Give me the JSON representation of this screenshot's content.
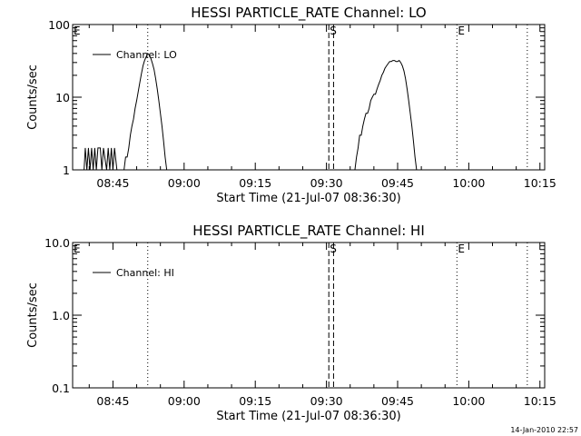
{
  "chart_data": [
    {
      "type": "line",
      "title": "HESSI PARTICLE_RATE Channel: LO",
      "xlabel": "Start Time (21-Jul-07 08:36:30)",
      "ylabel": "Counts/sec",
      "y_scale": "log",
      "ylim": [
        1,
        100
      ],
      "xlim": [
        "08:36:30",
        "10:16:00"
      ],
      "x_tick_labels": [
        "08:45",
        "09:00",
        "09:15",
        "09:30",
        "09:45",
        "10:00",
        "10:15"
      ],
      "y_tick_labels": [
        "1",
        "10",
        "100"
      ],
      "legend": {
        "entries": [
          "Channel: LO"
        ],
        "position": "top-left"
      },
      "grid": false,
      "event_markers": [
        {
          "label": "E",
          "time": "08:36:30",
          "style": "none"
        },
        {
          "label": "",
          "time": "08:52:20",
          "style": "dotted"
        },
        {
          "label": "S",
          "time": "09:30:30",
          "style": "dashed"
        },
        {
          "label": "",
          "time": "09:31:30",
          "style": "dashed"
        },
        {
          "label": "E",
          "time": "09:57:30",
          "style": "dotted"
        },
        {
          "label": "",
          "time": "10:12:20",
          "style": "dotted"
        }
      ],
      "series": [
        {
          "name": "Channel: LO",
          "points": [
            [
              "08:38:50",
              0.8
            ],
            [
              "08:39:10",
              2
            ],
            [
              "08:39:30",
              1
            ],
            [
              "08:39:50",
              2
            ],
            [
              "08:40:10",
              1
            ],
            [
              "08:40:30",
              2
            ],
            [
              "08:40:50",
              1
            ],
            [
              "08:41:10",
              2
            ],
            [
              "08:41:30",
              1
            ],
            [
              "08:41:50",
              2
            ],
            [
              "08:42:20",
              2
            ],
            [
              "08:42:40",
              1
            ],
            [
              "08:43:00",
              2
            ],
            [
              "08:43:40",
              1
            ],
            [
              "08:44:00",
              2
            ],
            [
              "08:44:20",
              1
            ],
            [
              "08:44:40",
              2
            ],
            [
              "08:45:00",
              1
            ],
            [
              "08:45:20",
              2
            ],
            [
              "08:45:50",
              1
            ],
            [
              "08:46:10",
              0.8
            ],
            [
              "08:46:30",
              0.8
            ],
            [
              "08:46:50",
              1
            ],
            [
              "08:47:20",
              1
            ],
            [
              "08:47:40",
              1.5
            ],
            [
              "08:48:00",
              1.5
            ],
            [
              "08:48:20",
              2
            ],
            [
              "08:48:40",
              3
            ],
            [
              "08:49:00",
              4
            ],
            [
              "08:49:20",
              5
            ],
            [
              "08:49:40",
              7
            ],
            [
              "08:50:00",
              9
            ],
            [
              "08:50:20",
              12
            ],
            [
              "08:50:40",
              16
            ],
            [
              "08:51:00",
              21
            ],
            [
              "08:51:20",
              27
            ],
            [
              "08:51:40",
              32
            ],
            [
              "08:52:00",
              36
            ],
            [
              "08:52:20",
              40
            ],
            [
              "08:52:40",
              38
            ],
            [
              "08:53:00",
              34
            ],
            [
              "08:53:20",
              29
            ],
            [
              "08:53:40",
              24
            ],
            [
              "08:54:00",
              18
            ],
            [
              "08:54:20",
              13
            ],
            [
              "08:54:40",
              9
            ],
            [
              "08:55:00",
              6
            ],
            [
              "08:55:20",
              4
            ],
            [
              "08:55:40",
              2.5
            ],
            [
              "08:56:00",
              1.5
            ],
            [
              "08:56:20",
              1
            ],
            [
              "08:56:40",
              0.8
            ],
            [
              "08:57:00",
              1
            ],
            [
              "08:57:20",
              0.8
            ],
            [
              "09:30:00",
              0.8
            ],
            [
              "09:30:20",
              1
            ],
            [
              "09:30:40",
              0.8
            ],
            [
              "09:35:40",
              0.8
            ],
            [
              "09:36:00",
              1
            ],
            [
              "09:36:20",
              1.5
            ],
            [
              "09:36:40",
              2
            ],
            [
              "09:37:00",
              3
            ],
            [
              "09:37:20",
              3
            ],
            [
              "09:37:40",
              4
            ],
            [
              "09:38:00",
              5
            ],
            [
              "09:38:20",
              6
            ],
            [
              "09:38:40",
              6
            ],
            [
              "09:39:00",
              7
            ],
            [
              "09:39:20",
              9
            ],
            [
              "09:39:40",
              10
            ],
            [
              "09:40:00",
              11
            ],
            [
              "09:40:20",
              11
            ],
            [
              "09:40:40",
              13
            ],
            [
              "09:41:00",
              15
            ],
            [
              "09:41:20",
              17
            ],
            [
              "09:41:40",
              20
            ],
            [
              "09:42:00",
              22
            ],
            [
              "09:42:20",
              25
            ],
            [
              "09:42:40",
              27
            ],
            [
              "09:43:00",
              29
            ],
            [
              "09:43:20",
              31
            ],
            [
              "09:43:40",
              31
            ],
            [
              "09:44:00",
              32
            ],
            [
              "09:44:20",
              32
            ],
            [
              "09:44:40",
              31
            ],
            [
              "09:45:00",
              31
            ],
            [
              "09:45:20",
              32
            ],
            [
              "09:45:40",
              30
            ],
            [
              "09:46:00",
              27
            ],
            [
              "09:46:20",
              23
            ],
            [
              "09:46:40",
              18
            ],
            [
              "09:47:00",
              13
            ],
            [
              "09:47:20",
              9
            ],
            [
              "09:47:40",
              6
            ],
            [
              "09:48:00",
              4
            ],
            [
              "09:48:20",
              2.5
            ],
            [
              "09:48:40",
              1.5
            ],
            [
              "09:49:00",
              1
            ],
            [
              "09:49:20",
              0.8
            ]
          ]
        }
      ]
    },
    {
      "type": "line",
      "title": "HESSI PARTICLE_RATE Channel: HI",
      "xlabel": "Start Time (21-Jul-07 08:36:30)",
      "ylabel": "Counts/sec",
      "y_scale": "log",
      "ylim": [
        0.1,
        10
      ],
      "xlim": [
        "08:36:30",
        "10:16:00"
      ],
      "x_tick_labels": [
        "08:45",
        "09:00",
        "09:15",
        "09:30",
        "09:45",
        "10:00",
        "10:15"
      ],
      "y_tick_labels": [
        "0.1",
        "1.0",
        "10.0"
      ],
      "legend": {
        "entries": [
          "Channel: HI"
        ],
        "position": "top-left"
      },
      "grid": false,
      "event_markers": [
        {
          "label": "E",
          "time": "08:36:30",
          "style": "none"
        },
        {
          "label": "",
          "time": "08:52:20",
          "style": "dotted"
        },
        {
          "label": "S",
          "time": "09:30:30",
          "style": "dashed"
        },
        {
          "label": "",
          "time": "09:31:30",
          "style": "dashed"
        },
        {
          "label": "E",
          "time": "09:57:30",
          "style": "dotted"
        },
        {
          "label": "",
          "time": "10:12:20",
          "style": "dotted"
        }
      ],
      "series": [
        {
          "name": "Channel: HI",
          "points": []
        }
      ]
    }
  ],
  "footer": {
    "timestamp": "14-Jan-2010 22:57"
  }
}
